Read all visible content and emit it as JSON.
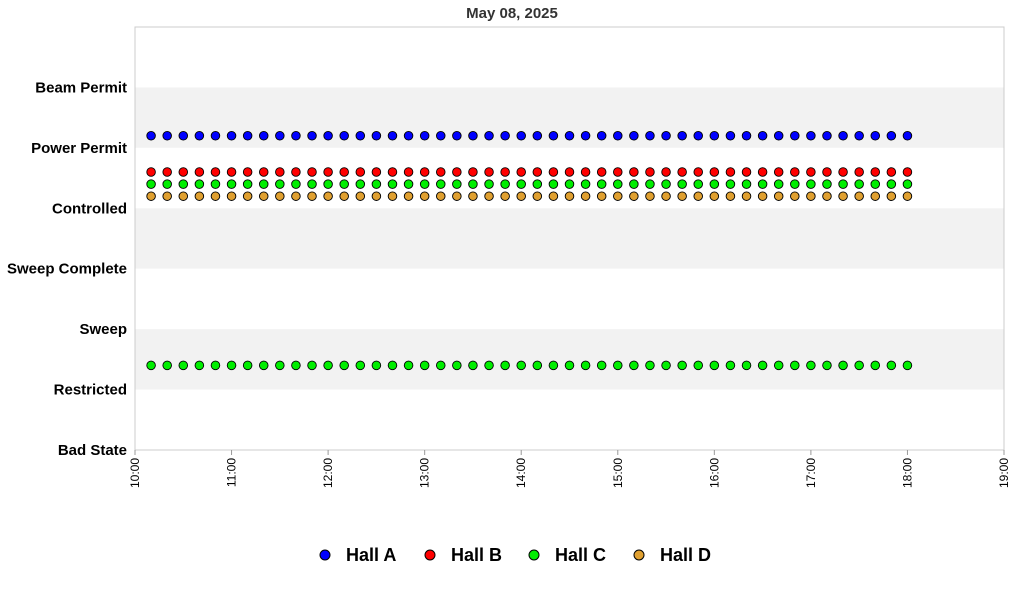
{
  "chart_data": {
    "type": "scatter",
    "title": "May 08, 2025",
    "xlabel": "",
    "ylabel": "",
    "x_ticks": [
      "10:00",
      "11:00",
      "12:00",
      "13:00",
      "14:00",
      "15:00",
      "16:00",
      "17:00",
      "18:00",
      "19:00"
    ],
    "xlim": [
      "10:00",
      "19:00"
    ],
    "y_categories": [
      "Bad State",
      "Restricted",
      "Sweep",
      "Sweep Complete",
      "Controlled",
      "Power Permit",
      "Beam Permit"
    ],
    "band_fill": "#f2f2f2",
    "grid": false,
    "legend_position": "bottom",
    "sample_interval_minutes": 10,
    "series": [
      {
        "name": "Hall A",
        "color": "#0000ff",
        "time_start": "10:10",
        "time_end": "18:00",
        "value": "Power Permit",
        "level": 5.2
      },
      {
        "name": "Hall B",
        "color": "#ff0000",
        "time_start": "10:10",
        "time_end": "18:00",
        "value": "Controlled",
        "level": 4.6
      },
      {
        "name": "Hall C",
        "color": "#00ee00",
        "time_start": "10:10",
        "time_end": "18:00",
        "value": "Controlled",
        "level": 4.4
      },
      {
        "name": "Hall C",
        "color": "#00ee00",
        "time_start": "10:10",
        "time_end": "18:00",
        "value": "Restricted",
        "level": 1.4
      },
      {
        "name": "Hall D",
        "color": "#e0a030",
        "time_start": "10:10",
        "time_end": "18:00",
        "value": "Controlled",
        "level": 4.2
      }
    ],
    "legend": [
      {
        "name": "Hall A",
        "color": "#0000ff"
      },
      {
        "name": "Hall B",
        "color": "#ff0000"
      },
      {
        "name": "Hall C",
        "color": "#00ee00"
      },
      {
        "name": "Hall D",
        "color": "#e0a030"
      }
    ]
  }
}
